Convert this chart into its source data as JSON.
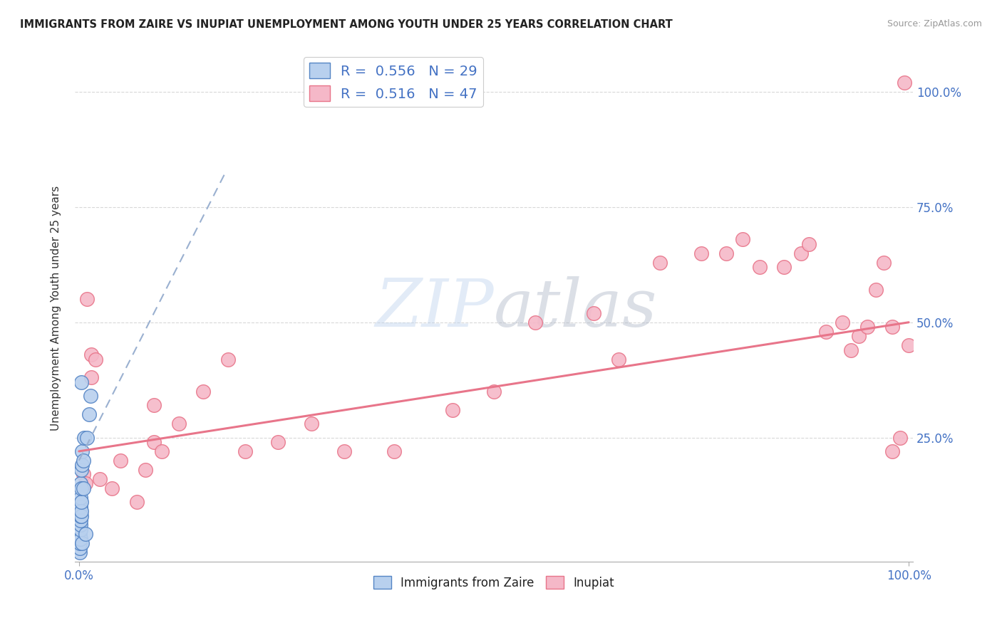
{
  "title": "IMMIGRANTS FROM ZAIRE VS INUPIAT UNEMPLOYMENT AMONG YOUTH UNDER 25 YEARS CORRELATION CHART",
  "source": "Source: ZipAtlas.com",
  "ylabel": "Unemployment Among Youth under 25 years",
  "r_zaire": 0.556,
  "n_zaire": 29,
  "r_inupiat": 0.516,
  "n_inupiat": 47,
  "axis_color": "#4472c4",
  "watermark_zip": "ZIP",
  "watermark_atlas": "atlas",
  "zaire_color": "#b8d0ee",
  "zaire_edge": "#5585c5",
  "inupiat_color": "#f5b8c8",
  "inupiat_edge": "#e8758a",
  "zaire_scatter_x": [
    0.001,
    0.001,
    0.001,
    0.001,
    0.001,
    0.002,
    0.002,
    0.002,
    0.002,
    0.002,
    0.002,
    0.002,
    0.002,
    0.003,
    0.003,
    0.003,
    0.003,
    0.003,
    0.004,
    0.004,
    0.004,
    0.005,
    0.005,
    0.006,
    0.008,
    0.01,
    0.012,
    0.014,
    0.003
  ],
  "zaire_scatter_y": [
    0.0,
    0.01,
    0.02,
    0.03,
    0.04,
    0.03,
    0.05,
    0.06,
    0.07,
    0.08,
    0.1,
    0.12,
    0.15,
    0.08,
    0.09,
    0.11,
    0.14,
    0.18,
    0.02,
    0.19,
    0.22,
    0.14,
    0.2,
    0.25,
    0.04,
    0.25,
    0.3,
    0.34,
    0.37
  ],
  "inupiat_scatter_x": [
    0.005,
    0.008,
    0.01,
    0.015,
    0.02,
    0.025,
    0.04,
    0.05,
    0.07,
    0.08,
    0.09,
    0.1,
    0.12,
    0.15,
    0.18,
    0.2,
    0.24,
    0.28,
    0.32,
    0.38,
    0.45,
    0.5,
    0.55,
    0.62,
    0.65,
    0.7,
    0.75,
    0.78,
    0.8,
    0.82,
    0.85,
    0.87,
    0.88,
    0.9,
    0.92,
    0.93,
    0.94,
    0.95,
    0.96,
    0.97,
    0.98,
    0.98,
    0.99,
    0.995,
    1.0,
    0.015,
    0.09
  ],
  "inupiat_scatter_y": [
    0.17,
    0.15,
    0.55,
    0.43,
    0.42,
    0.16,
    0.14,
    0.2,
    0.11,
    0.18,
    0.24,
    0.22,
    0.28,
    0.35,
    0.42,
    0.22,
    0.24,
    0.28,
    0.22,
    0.22,
    0.31,
    0.35,
    0.5,
    0.52,
    0.42,
    0.63,
    0.65,
    0.65,
    0.68,
    0.62,
    0.62,
    0.65,
    0.67,
    0.48,
    0.5,
    0.44,
    0.47,
    0.49,
    0.57,
    0.63,
    0.49,
    0.22,
    0.25,
    1.02,
    0.45,
    0.38,
    0.32
  ],
  "zaire_line_x": [
    0.0,
    0.175
  ],
  "zaire_line_y": [
    0.2,
    0.82
  ],
  "inupiat_line_x": [
    0.0,
    1.0
  ],
  "inupiat_line_y": [
    0.22,
    0.5
  ],
  "xlim": [
    -0.005,
    1.005
  ],
  "ylim": [
    -0.02,
    1.08
  ],
  "right_yticks": [
    0.25,
    0.5,
    0.75,
    1.0
  ],
  "right_ytick_labels": [
    "25.0%",
    "50.0%",
    "75.0%",
    "100.0%"
  ],
  "grid_yticks": [
    0.25,
    0.5,
    0.75,
    1.0
  ],
  "xtick_left_label": "0.0%",
  "xtick_right_label": "100.0%",
  "background_color": "#ffffff",
  "grid_color": "#d8d8d8"
}
